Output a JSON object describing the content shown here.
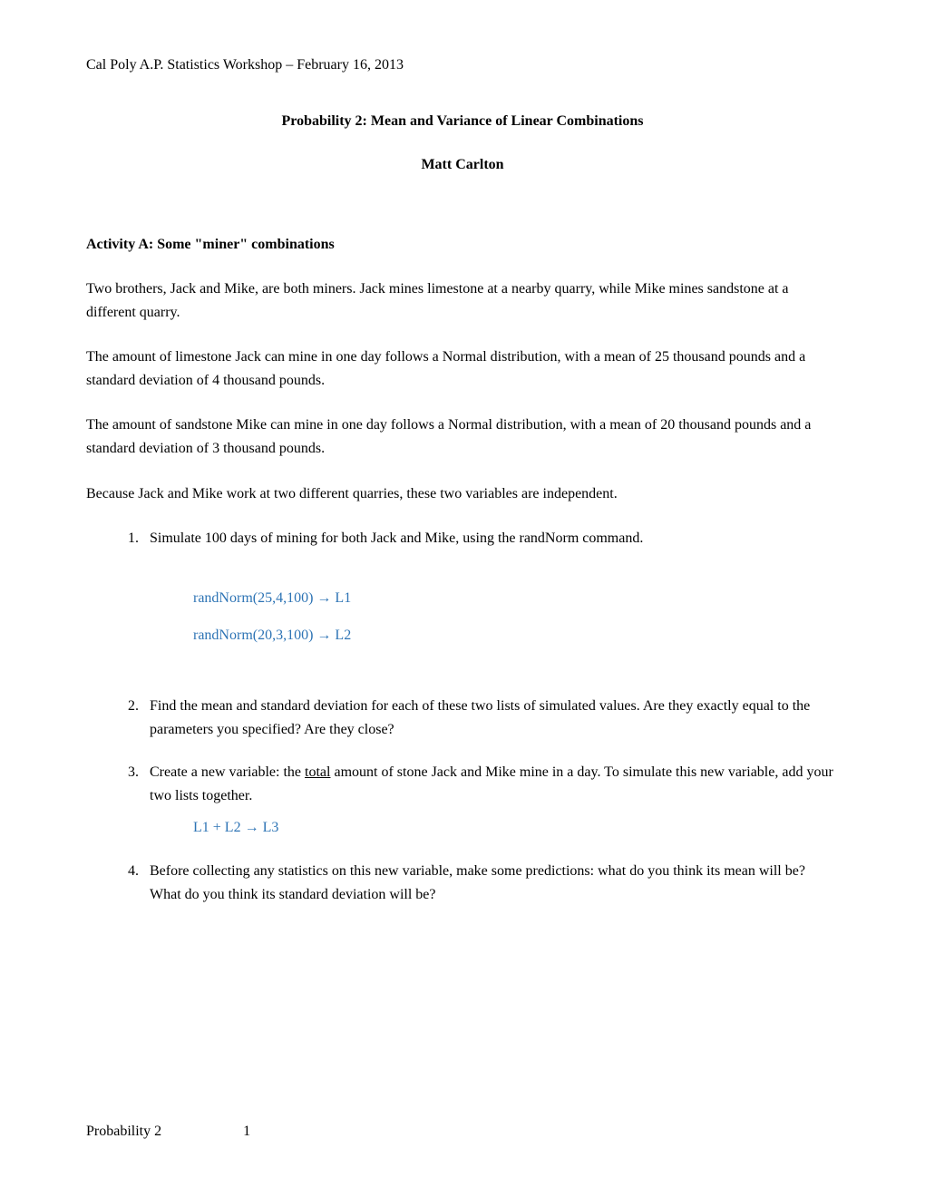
{
  "header": "Cal Poly A.P. Statistics Workshop – February 16, 2013",
  "title": "Probability 2: Mean and Variance of Linear Combinations",
  "author": "Matt Carlton",
  "activity": {
    "heading": "Activity A: Some \"miner\" combinations",
    "para1": "Two brothers, Jack and Mike, are both miners. Jack mines limestone at a nearby quarry, while Mike mines sandstone at a different quarry.",
    "para2": "The amount of limestone Jack can mine in one day follows a Normal distribution, with a mean of 25 thousand pounds and a standard deviation of 4 thousand pounds.",
    "para3": "The amount of sandstone Mike can mine in one day follows a Normal distribution, with a mean of 20 thousand pounds and a standard deviation of 3 thousand pounds.",
    "para4": "Because Jack and Mike work at two different quarries, these two variables are independent."
  },
  "q1": {
    "text": "Simulate 100 days of mining for both Jack and Mike, using the randNorm command.",
    "cmd1": "randNorm(25,4,100) → L1",
    "cmd2": "randNorm(20,3,100) → L2"
  },
  "q2": {
    "text": "Find the mean and standard deviation for each of these two lists of simulated values. Are they exactly equal to the parameters you specified? Are they close?"
  },
  "q3": {
    "pre": "Create a new variable: the ",
    "underline": "total",
    "post": " amount of stone Jack and Mike mine in a day. To simulate this new variable, add your two lists together.",
    "cmd": "L1 + L2 → L3"
  },
  "q4": {
    "text": "Before collecting any statistics on this new variable, make some predictions: what do you think its mean will be? What do you think its standard deviation will be?"
  },
  "footer": {
    "label": "Probability 2",
    "page": "1"
  },
  "colors": {
    "text": "#000000",
    "command": "#2e74b5",
    "background": "#ffffff"
  },
  "fonts": {
    "family": "Times New Roman",
    "body_size": 16
  }
}
